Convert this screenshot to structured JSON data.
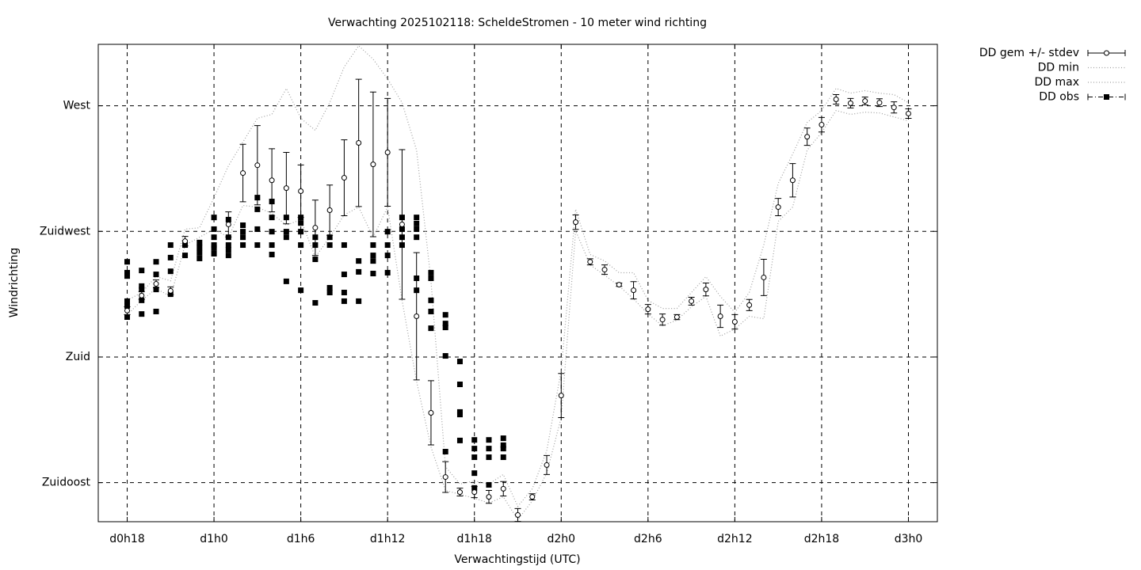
{
  "chart_data": {
    "type": "errorbar",
    "title": "Verwachting 2025102118: ScheldeStromen - 10 meter wind richting",
    "xlabel": "Verwachtingstijd (UTC)",
    "ylabel": "Windrichting",
    "xlim": [
      16,
      74
    ],
    "xticks": [
      {
        "value": 18,
        "label": "d0h18"
      },
      {
        "value": 24,
        "label": "d1h0"
      },
      {
        "value": 30,
        "label": "d1h6"
      },
      {
        "value": 36,
        "label": "d1h12"
      },
      {
        "value": 42,
        "label": "d1h18"
      },
      {
        "value": 48,
        "label": "d2h0"
      },
      {
        "value": 54,
        "label": "d2h6"
      },
      {
        "value": 60,
        "label": "d2h12"
      },
      {
        "value": 66,
        "label": "d2h18"
      },
      {
        "value": 72,
        "label": "d3h0"
      }
    ],
    "ylim": [
      121,
      292
    ],
    "yticks": [
      {
        "value": 135,
        "label": "Zuidoost"
      },
      {
        "value": 180,
        "label": "Zuid"
      },
      {
        "value": 225,
        "label": "Zuidwest"
      },
      {
        "value": 270,
        "label": "West"
      }
    ],
    "grid": true,
    "legend": "outside-right",
    "x": [
      18,
      19,
      20,
      21,
      22,
      23,
      24,
      25,
      26,
      27,
      28,
      29,
      30,
      31,
      32,
      33,
      34,
      35,
      36,
      37,
      38,
      39,
      40,
      41,
      42,
      43,
      44,
      45,
      46,
      47,
      48,
      49,
      50,
      51,
      52,
      53,
      54,
      55,
      56,
      57,
      58,
      59,
      60,
      61,
      62,
      63,
      64,
      65,
      66,
      67,
      68,
      69,
      70,
      71,
      72
    ],
    "series": [
      {
        "name": "DD gem +/- stdev",
        "color": "#000000",
        "values": [
          196.6,
          202.0,
          206.2,
          203.7,
          221.5,
          null,
          null,
          227.5,
          245.9,
          248.7,
          243.3,
          240.5,
          239.4,
          226.3,
          232.6,
          244.2,
          256.7,
          249.0,
          253.3,
          227.5,
          194.6,
          160.0,
          137.0,
          131.6,
          131.6,
          129.9,
          132.8,
          123.4,
          129.9,
          141.3,
          166.2,
          228.3,
          214.1,
          211.3,
          205.9,
          203.9,
          197.1,
          193.4,
          194.3,
          200.0,
          204.2,
          194.6,
          192.6,
          198.6,
          208.5,
          233.7,
          243.3,
          258.9,
          263.2,
          272.3,
          270.9,
          271.7,
          271.1,
          269.4,
          267.2
        ],
        "errors": [
          1.4,
          1.4,
          1.4,
          1.4,
          1.7,
          null,
          null,
          4.5,
          10.3,
          14.2,
          11.3,
          12.8,
          9.4,
          9.9,
          9.0,
          13.6,
          22.8,
          25.9,
          19.3,
          26.8,
          22.8,
          11.5,
          5.5,
          1.4,
          2,
          2.3,
          2.6,
          2.3,
          1.1,
          3.4,
          7.9,
          2.6,
          1.1,
          1.7,
          0.6,
          3.1,
          1.7,
          2,
          0.9,
          1.4,
          2.3,
          4.0,
          2.6,
          2,
          6.5,
          3.1,
          6.0,
          3.1,
          2.6,
          1.7,
          1.7,
          1.4,
          1.4,
          2,
          1.7
        ]
      },
      {
        "name": "DD min",
        "color": "#a0a0a0",
        "values": [
          195.1,
          200.3,
          204.5,
          201.7,
          220.1,
          222.9,
          225.8,
          222.9,
          234.3,
          233.7,
          231.4,
          227.2,
          229.2,
          215.8,
          222.9,
          230.9,
          233.7,
          222.9,
          233.7,
          200.3,
          171.3,
          147.8,
          132.2,
          130.8,
          129.4,
          127.7,
          129.9,
          121.7,
          128.5,
          138.4,
          158.3,
          225.2,
          213.0,
          209.3,
          205.4,
          200.8,
          195.4,
          191.2,
          193.2,
          198.0,
          201.7,
          187.5,
          190.0,
          194.6,
          193.7,
          228.6,
          233.7,
          254.1,
          260.4,
          268.3,
          266.9,
          267.7,
          267.4,
          266.0,
          264.6
        ]
      },
      {
        "name": "DD max",
        "color": "#a0a0a0",
        "values": [
          200.3,
          203.1,
          208.8,
          207.3,
          225.8,
          226.3,
          237.1,
          248.5,
          257.0,
          265.5,
          266.9,
          276.2,
          265.5,
          261.2,
          271.1,
          283.9,
          291.5,
          286.7,
          279.6,
          271.1,
          254.1,
          207.3,
          140.7,
          134.5,
          135.6,
          134.5,
          137.9,
          126.5,
          132.8,
          146.4,
          175.3,
          232.9,
          216.7,
          214.4,
          210.2,
          210.2,
          200.3,
          197.4,
          197.4,
          203.1,
          208.8,
          201.7,
          196.0,
          203.1,
          220.1,
          242.2,
          252.7,
          264.0,
          268.3,
          276.2,
          274.5,
          275.4,
          274.5,
          274.0,
          271.1
        ]
      },
      {
        "name": "DD obs",
        "color": "#000000",
        "x": [
          18,
          18,
          18,
          18,
          18,
          18,
          19,
          19,
          19,
          19,
          19,
          20,
          20,
          20,
          20,
          21,
          21,
          21,
          21,
          22,
          22,
          23,
          23,
          23,
          23,
          24,
          24,
          24,
          24,
          24,
          24,
          25,
          25,
          25,
          25,
          25,
          26,
          26,
          26,
          26,
          27,
          27,
          27,
          27,
          28,
          28,
          28,
          28,
          28,
          29,
          29,
          29,
          29,
          30,
          30,
          30,
          30,
          30,
          31,
          31,
          31,
          31,
          32,
          32,
          32,
          32,
          33,
          33,
          33,
          33,
          34,
          34,
          34,
          35,
          35,
          35,
          35,
          36,
          36,
          36,
          36,
          37,
          37,
          37,
          37,
          38,
          38,
          38,
          38,
          38,
          38,
          39,
          39,
          39,
          39,
          39,
          40,
          40,
          40,
          40,
          40,
          41,
          41,
          41,
          41,
          41,
          42,
          42,
          42,
          42,
          42,
          43,
          43,
          43,
          43,
          44,
          44,
          44,
          44
        ],
        "values": [
          214.1,
          210.2,
          209.0,
          200.0,
          198.3,
          194.3,
          211.0,
          205.4,
          204.2,
          200.3,
          195.4,
          214.1,
          209.6,
          204.2,
          196.3,
          220.1,
          215.6,
          210.7,
          202.5,
          220.1,
          216.4,
          221.0,
          219.2,
          217.3,
          215.3,
          230.0,
          225.8,
          222.9,
          220.1,
          219.0,
          217.0,
          229.2,
          222.9,
          220.1,
          218.4,
          216.4,
          227.2,
          224.9,
          222.9,
          220.1,
          237.1,
          232.9,
          225.8,
          220.1,
          235.7,
          230.0,
          224.9,
          220.1,
          216.7,
          230.0,
          224.9,
          222.9,
          207.1,
          230.0,
          228.0,
          224.9,
          220.1,
          203.9,
          222.9,
          220.1,
          215.0,
          199.4,
          222.9,
          220.1,
          204.8,
          203.1,
          220.1,
          209.6,
          203.1,
          200.0,
          214.4,
          210.5,
          200.0,
          220.1,
          216.4,
          214.4,
          209.9,
          224.9,
          220.1,
          216.4,
          210.2,
          230.0,
          225.8,
          222.9,
          220.1,
          230.0,
          227.8,
          225.8,
          222.9,
          208.2,
          203.9,
          210.2,
          208.2,
          200.3,
          196.3,
          190.3,
          195.1,
          192.0,
          190.6,
          180.4,
          146.1,
          178.4,
          170.2,
          160.3,
          159.4,
          150.1,
          150.3,
          147.2,
          144.1,
          138.4,
          133.1,
          150.3,
          147.2,
          144.1,
          134.2,
          150.9,
          148.4,
          147.2,
          144.1
        ]
      }
    ]
  }
}
